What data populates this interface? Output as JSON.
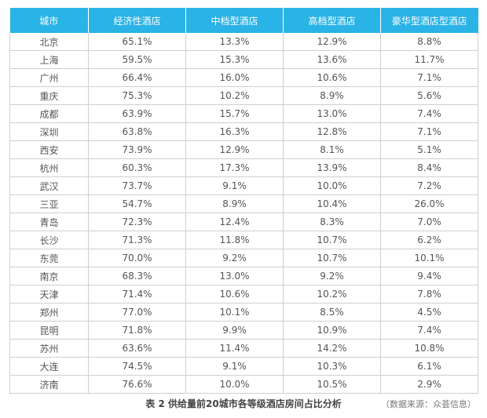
{
  "table": {
    "headers": [
      "城市",
      "经济性酒店",
      "中档型酒店",
      "高档型酒店",
      "豪华型酒店型酒店"
    ],
    "rows": [
      [
        "北京",
        "65.1%",
        "13.3%",
        "12.9%",
        "8.8%"
      ],
      [
        "上海",
        "59.5%",
        "15.3%",
        "13.6%",
        "11.7%"
      ],
      [
        "广州",
        "66.4%",
        "16.0%",
        "10.6%",
        "7.1%"
      ],
      [
        "重庆",
        "75.3%",
        "10.2%",
        "8.9%",
        "5.6%"
      ],
      [
        "成都",
        "63.9%",
        "15.7%",
        "13.0%",
        "7.4%"
      ],
      [
        "深圳",
        "63.8%",
        "16.3%",
        "12.8%",
        "7.1%"
      ],
      [
        "西安",
        "73.9%",
        "12.9%",
        "8.1%",
        "5.1%"
      ],
      [
        "杭州",
        "60.3%",
        "17.3%",
        "13.9%",
        "8.4%"
      ],
      [
        "武汉",
        "73.7%",
        "9.1%",
        "10.0%",
        "7.2%"
      ],
      [
        "三亚",
        "54.7%",
        "8.9%",
        "10.4%",
        "26.0%"
      ],
      [
        "青岛",
        "72.3%",
        "12.4%",
        "8.3%",
        "7.0%"
      ],
      [
        "长沙",
        "71.3%",
        "11.8%",
        "10.7%",
        "6.2%"
      ],
      [
        "东莞",
        "70.0%",
        "9.2%",
        "10.7%",
        "10.1%"
      ],
      [
        "南京",
        "68.3%",
        "13.0%",
        "9.2%",
        "9.4%"
      ],
      [
        "天津",
        "71.4%",
        "10.6%",
        "10.2%",
        "7.8%"
      ],
      [
        "郑州",
        "77.0%",
        "10.1%",
        "8.5%",
        "4.5%"
      ],
      [
        "昆明",
        "71.8%",
        "9.9%",
        "10.9%",
        "7.4%"
      ],
      [
        "苏州",
        "63.6%",
        "11.4%",
        "14.2%",
        "10.8%"
      ],
      [
        "大连",
        "74.5%",
        "9.1%",
        "10.3%",
        "6.1%"
      ],
      [
        "济南",
        "76.6%",
        "10.0%",
        "10.5%",
        "2.9%"
      ]
    ]
  },
  "caption": "表 2 供给量前20城市各等级酒店房间占比分析",
  "source": "（数据来源：众荟信息）",
  "colors": {
    "header_bg": "#2ab3e6",
    "header_text": "#ffffff",
    "grid": "#cfcfcf"
  }
}
